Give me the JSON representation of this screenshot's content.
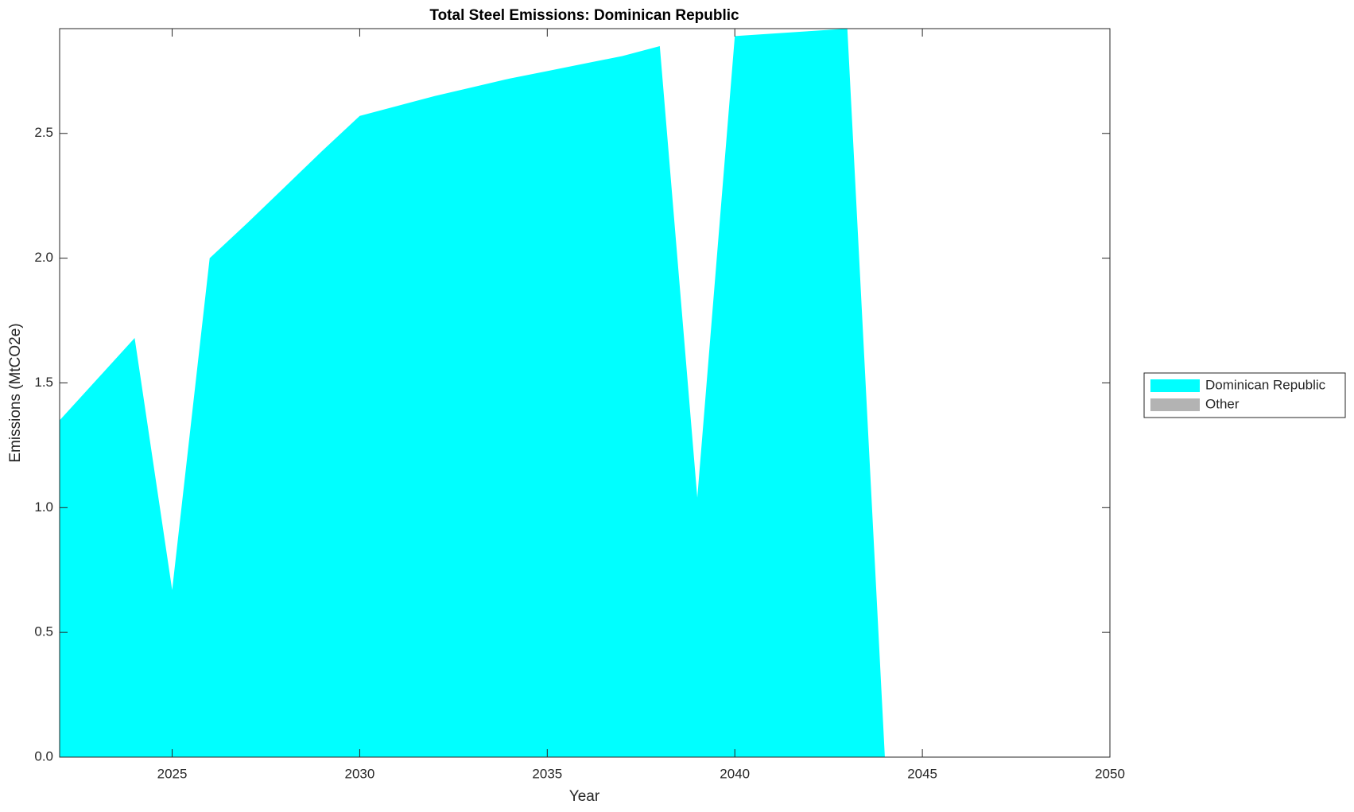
{
  "chart_data": {
    "type": "stacked-area",
    "title": "Total Steel Emissions: Dominican Republic",
    "xlabel": "Year",
    "ylabel": "Emissions (MtCO2e)",
    "x": [
      2022,
      2023,
      2024,
      2025,
      2026,
      2027,
      2028,
      2029,
      2030,
      2031,
      2032,
      2033,
      2034,
      2035,
      2036,
      2037,
      2038,
      2039,
      2040,
      2041,
      2042,
      2043,
      2044
    ],
    "series": [
      {
        "name": "Dominican Republic",
        "color": "#00ffff",
        "values": [
          1.35,
          1.515,
          1.68,
          0.67,
          2.0,
          2.14,
          2.285,
          2.43,
          2.57,
          2.61,
          2.65,
          2.685,
          2.72,
          2.75,
          2.78,
          2.81,
          2.85,
          1.04,
          2.89,
          2.9,
          2.91,
          2.92,
          0
        ]
      },
      {
        "name": "Other",
        "color": "#b3b3b3",
        "values": [
          0,
          0,
          0,
          0,
          0,
          0,
          0,
          0,
          0,
          0,
          0,
          0,
          0,
          0,
          0,
          0,
          0,
          0,
          0,
          0,
          0,
          0,
          0
        ]
      }
    ],
    "xlim": [
      2022,
      2050
    ],
    "xticks": [
      2025,
      2030,
      2035,
      2040,
      2045,
      2050
    ],
    "ylim": [
      0,
      2.92
    ],
    "yticks": [
      {
        "value": 0,
        "label": "0.0"
      },
      0.5,
      {
        "value": 1,
        "label": "1.0"
      },
      1.5,
      {
        "value": 2,
        "label": "2.0"
      },
      2.5
    ],
    "legend": "outside-right"
  }
}
